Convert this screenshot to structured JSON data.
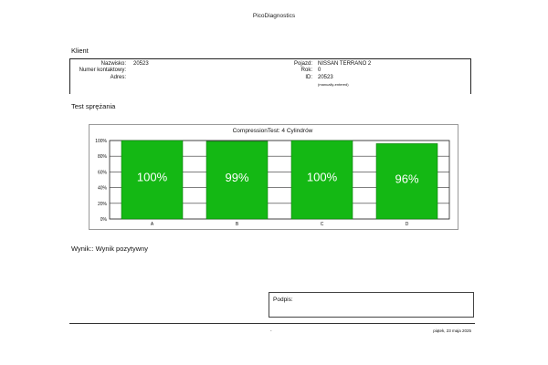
{
  "app_title": "PicoDiagnostics",
  "client": {
    "heading": "Klient",
    "surname_label": "Nazwisko:",
    "surname_value": "20523",
    "contact_label": "Numer kontaktowy:",
    "address_label": "Adres:",
    "vehicle_label": "Pojazd:",
    "vehicle_value": "NISSAN TERRANO 2",
    "year_label": "Rok:",
    "year_value": "0",
    "id_label": "ID:",
    "id_value": "20523",
    "id_note": "(manually-entered)"
  },
  "test": {
    "heading": "Test sprężania"
  },
  "chart_data": {
    "type": "bar",
    "title": "CompressionTest: 4 Cylindrów",
    "categories": [
      "A",
      "B",
      "C",
      "D"
    ],
    "values": [
      100,
      99,
      100,
      96
    ],
    "data_labels": [
      "100%",
      "99%",
      "100%",
      "96%"
    ],
    "ytick_labels": [
      "0%",
      "20%",
      "40%",
      "60%",
      "80%",
      "100%"
    ],
    "ylim": [
      0,
      100
    ],
    "grid": true,
    "bar_color": "#14b814"
  },
  "result": {
    "text": "Wynik:: Wynik pozytywny"
  },
  "signature": {
    "label": "Podpis:"
  },
  "footer": {
    "center": "-",
    "date": "piątek, 23 maja 2025"
  }
}
